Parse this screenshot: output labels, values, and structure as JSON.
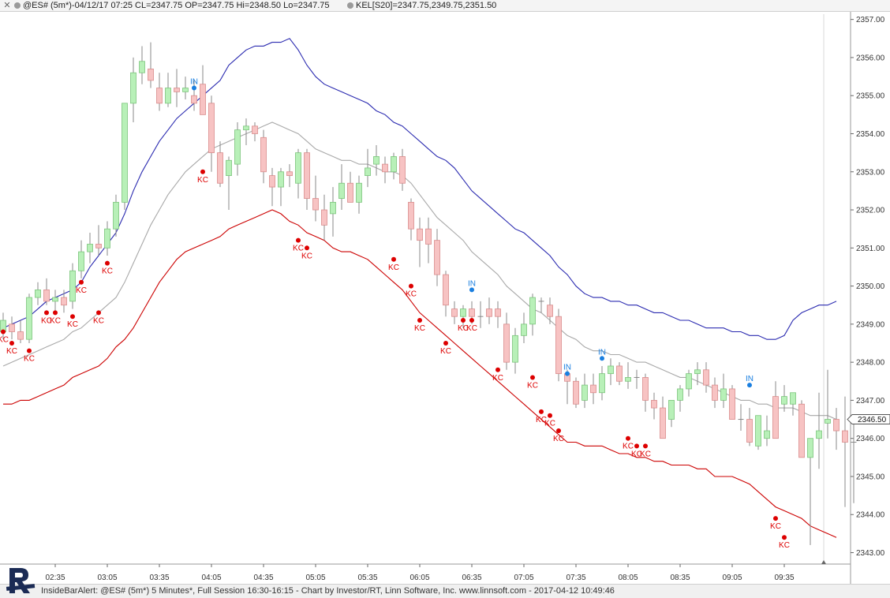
{
  "window": {
    "title": "@ES# (5m*)-04/12/17 07:25 CL=2347.75 OP=2347.75 Hi=2348.50 Lo=2347.75",
    "indicator": "KEL[S20]=2347.75,2349.75,2351.50",
    "close_label": "✕"
  },
  "footer": {
    "text": "InsideBarAlert: @ES# (5m*) 5 Minutes*, Full Session 16:30-16:15 - Chart by Investor/RT, Linn Software, Inc. www.linnsoft.com - 2017-04-12 10:49:46"
  },
  "colors": {
    "up_fill": "#b8f0b8",
    "up_edge": "#7cc57c",
    "down_fill": "#f7c3c3",
    "down_edge": "#d98c8c",
    "upper_band": "#2a2ab0",
    "middle_band": "#a8a8a8",
    "lower_band": "#cc0000",
    "kc_marker": "#dd0000",
    "in_marker": "#1a7fe0",
    "wick": "#888888"
  },
  "chart_data": {
    "type": "candlestick",
    "y_range": [
      2342.7,
      2357.2
    ],
    "y_ticks": [
      "2343.00",
      "2344.00",
      "2345.00",
      "2346.00",
      "2347.00",
      "2348.00",
      "2349.00",
      "2350.00",
      "2351.00",
      "2352.00",
      "2353.00",
      "2354.00",
      "2355.00",
      "2356.00",
      "2357.00"
    ],
    "x_labels": [
      {
        "bar": 6,
        "label": "02:35"
      },
      {
        "bar": 12,
        "label": "03:05"
      },
      {
        "bar": 18,
        "label": "03:35"
      },
      {
        "bar": 24,
        "label": "04:05"
      },
      {
        "bar": 30,
        "label": "04:35"
      },
      {
        "bar": 36,
        "label": "05:05"
      },
      {
        "bar": 42,
        "label": "05:35"
      },
      {
        "bar": 48,
        "label": "06:05"
      },
      {
        "bar": 54,
        "label": "06:35"
      },
      {
        "bar": 60,
        "label": "07:05"
      },
      {
        "bar": 66,
        "label": "07:35"
      },
      {
        "bar": 72,
        "label": "08:05"
      },
      {
        "bar": 78,
        "label": "08:35"
      },
      {
        "bar": 84,
        "label": "09:05"
      },
      {
        "bar": 90,
        "label": "09:35"
      }
    ],
    "last_price": "2346.50",
    "bars": [
      [
        2348.8,
        2349.3,
        2348.6,
        2349.1
      ],
      [
        2349.0,
        2349.2,
        2348.6,
        2348.8
      ],
      [
        2348.8,
        2349.1,
        2348.5,
        2348.6
      ],
      [
        2348.6,
        2349.8,
        2348.5,
        2349.7
      ],
      [
        2349.7,
        2350.1,
        2349.5,
        2349.9
      ],
      [
        2349.9,
        2350.2,
        2349.5,
        2349.6
      ],
      [
        2349.6,
        2349.9,
        2349.3,
        2349.7
      ],
      [
        2349.7,
        2349.9,
        2349.3,
        2349.5
      ],
      [
        2349.6,
        2350.6,
        2349.4,
        2350.4
      ],
      [
        2350.4,
        2351.2,
        2350.2,
        2350.9
      ],
      [
        2350.9,
        2351.4,
        2350.6,
        2351.1
      ],
      [
        2351.1,
        2351.6,
        2350.8,
        2351.0
      ],
      [
        2351.0,
        2351.7,
        2350.8,
        2351.5
      ],
      [
        2351.5,
        2352.4,
        2351.3,
        2352.2
      ],
      [
        2352.2,
        2354.0,
        2352.0,
        2354.8
      ],
      [
        2354.8,
        2356.0,
        2354.3,
        2355.6
      ],
      [
        2355.6,
        2356.3,
        2355.3,
        2355.9
      ],
      [
        2355.7,
        2356.4,
        2355.2,
        2355.4
      ],
      [
        2355.2,
        2355.6,
        2354.6,
        2354.8
      ],
      [
        2354.8,
        2355.6,
        2354.7,
        2355.2
      ],
      [
        2355.2,
        2355.7,
        2354.7,
        2355.1
      ],
      [
        2355.1,
        2355.5,
        2354.9,
        2355.2
      ],
      [
        2355.0,
        2355.4,
        2354.6,
        2354.8
      ],
      [
        2355.3,
        2355.8,
        2354.5,
        2354.5
      ],
      [
        2354.8,
        2355.0,
        2353.0,
        2353.5
      ],
      [
        2353.5,
        2353.8,
        2352.6,
        2352.7
      ],
      [
        2352.9,
        2353.4,
        2352.0,
        2353.3
      ],
      [
        2353.2,
        2354.3,
        2352.9,
        2354.1
      ],
      [
        2354.1,
        2354.4,
        2353.7,
        2354.2
      ],
      [
        2354.2,
        2354.3,
        2353.8,
        2354.0
      ],
      [
        2353.9,
        2354.1,
        2352.7,
        2353.0
      ],
      [
        2352.9,
        2353.1,
        2352.1,
        2352.6
      ],
      [
        2352.6,
        2353.1,
        2352.1,
        2353.0
      ],
      [
        2353.0,
        2353.2,
        2352.6,
        2352.9
      ],
      [
        2352.7,
        2353.6,
        2352.3,
        2353.5
      ],
      [
        2353.5,
        2353.6,
        2352.0,
        2352.3
      ],
      [
        2352.3,
        2352.9,
        2351.7,
        2352.0
      ],
      [
        2352.0,
        2352.4,
        2351.2,
        2351.6
      ],
      [
        2351.9,
        2352.6,
        2351.3,
        2352.2
      ],
      [
        2352.3,
        2353.2,
        2352.0,
        2352.7
      ],
      [
        2352.7,
        2353.0,
        2352.2,
        2352.2
      ],
      [
        2352.2,
        2352.9,
        2351.9,
        2352.7
      ],
      [
        2352.9,
        2353.6,
        2352.6,
        2353.1
      ],
      [
        2353.2,
        2353.7,
        2352.9,
        2353.4
      ],
      [
        2353.2,
        2353.4,
        2352.7,
        2353.0
      ],
      [
        2353.0,
        2353.5,
        2352.8,
        2353.4
      ],
      [
        2353.4,
        2353.6,
        2352.5,
        2352.7
      ],
      [
        2352.2,
        2352.3,
        2351.2,
        2351.5
      ],
      [
        2351.5,
        2351.8,
        2350.5,
        2351.2
      ],
      [
        2351.5,
        2351.8,
        2350.6,
        2351.1
      ],
      [
        2351.2,
        2351.5,
        2350.0,
        2350.3
      ],
      [
        2350.3,
        2350.4,
        2349.2,
        2349.5
      ],
      [
        2349.4,
        2349.6,
        2349.0,
        2349.2
      ],
      [
        2349.2,
        2349.5,
        2348.9,
        2349.4
      ],
      [
        2349.4,
        2349.6,
        2349.0,
        2349.2
      ],
      [
        2349.2,
        2349.6,
        2348.9,
        2349.2
      ],
      [
        2349.4,
        2349.7,
        2349.0,
        2349.2
      ],
      [
        2349.4,
        2349.6,
        2348.9,
        2349.2
      ],
      [
        2349.0,
        2349.3,
        2347.8,
        2348.0
      ],
      [
        2348.0,
        2348.9,
        2347.7,
        2348.7
      ],
      [
        2348.7,
        2349.3,
        2348.5,
        2349.0
      ],
      [
        2349.0,
        2349.8,
        2348.7,
        2349.7
      ],
      [
        2349.6,
        2349.7,
        2349.3,
        2349.6
      ],
      [
        2349.5,
        2349.7,
        2349.0,
        2349.2
      ],
      [
        2349.2,
        2349.4,
        2347.5,
        2347.7
      ],
      [
        2347.7,
        2347.8,
        2346.9,
        2347.5
      ],
      [
        2347.5,
        2347.6,
        2346.8,
        2346.9
      ],
      [
        2347.0,
        2347.7,
        2346.8,
        2347.4
      ],
      [
        2347.4,
        2347.7,
        2346.9,
        2347.2
      ],
      [
        2347.2,
        2347.9,
        2347.0,
        2347.7
      ],
      [
        2347.7,
        2348.1,
        2347.4,
        2347.9
      ],
      [
        2347.9,
        2348.0,
        2347.4,
        2347.5
      ],
      [
        2347.5,
        2348.0,
        2347.3,
        2347.6
      ],
      [
        2347.6,
        2347.8,
        2347.3,
        2347.6
      ],
      [
        2347.6,
        2347.7,
        2346.7,
        2347.0
      ],
      [
        2347.0,
        2347.2,
        2346.5,
        2346.8
      ],
      [
        2346.8,
        2347.1,
        2346.0,
        2346.0
      ],
      [
        2346.5,
        2347.0,
        2346.3,
        2347.0
      ],
      [
        2347.0,
        2347.4,
        2346.7,
        2347.3
      ],
      [
        2347.3,
        2347.8,
        2347.1,
        2347.7
      ],
      [
        2347.7,
        2348.0,
        2347.4,
        2347.8
      ],
      [
        2347.8,
        2348.0,
        2347.2,
        2347.4
      ],
      [
        2347.4,
        2347.6,
        2346.8,
        2347.0
      ],
      [
        2347.0,
        2347.7,
        2346.8,
        2347.3
      ],
      [
        2347.3,
        2347.4,
        2346.5,
        2346.5
      ],
      [
        2346.5,
        2346.9,
        2346.2,
        2346.5
      ],
      [
        2346.5,
        2346.8,
        2345.8,
        2345.9
      ],
      [
        2345.8,
        2346.6,
        2345.7,
        2346.6
      ],
      [
        2346.0,
        2346.6,
        2345.8,
        2346.2
      ],
      [
        2347.1,
        2347.5,
        2346.0,
        2346.0
      ],
      [
        2346.9,
        2347.4,
        2346.7,
        2347.1
      ],
      [
        2346.9,
        2347.2,
        2346.6,
        2347.2
      ],
      [
        2346.9,
        2347.0,
        2345.5,
        2345.5
      ],
      [
        2345.5,
        2345.6,
        2343.2,
        2346.0
      ],
      [
        2346.0,
        2347.2,
        2345.2,
        2346.2
      ],
      [
        2346.4,
        2347.8,
        2346.0,
        2346.5
      ],
      [
        2346.5,
        2346.8,
        2345.7,
        2346.2
      ],
      [
        2346.2,
        2347.1,
        2344.2,
        2345.9
      ],
      [
        2345.9,
        2346.5,
        2344.3,
        2345.9
      ]
    ],
    "upper_band": [
      2348.9,
      2349.0,
      2349.1,
      2349.2,
      2349.4,
      2349.6,
      2349.7,
      2349.8,
      2349.9,
      2350.1,
      2350.5,
      2350.8,
      2351.1,
      2351.4,
      2351.9,
      2352.5,
      2353.0,
      2353.4,
      2353.8,
      2354.1,
      2354.4,
      2354.6,
      2354.8,
      2355.0,
      2355.2,
      2355.4,
      2355.8,
      2356.0,
      2356.2,
      2356.3,
      2356.3,
      2356.4,
      2356.4,
      2356.5,
      2356.2,
      2355.8,
      2355.5,
      2355.3,
      2355.2,
      2355.1,
      2355.0,
      2354.9,
      2354.8,
      2354.6,
      2354.5,
      2354.3,
      2354.2,
      2354.0,
      2353.8,
      2353.6,
      2353.4,
      2353.3,
      2353.1,
      2352.8,
      2352.5,
      2352.3,
      2352.1,
      2351.9,
      2351.7,
      2351.5,
      2351.4,
      2351.2,
      2351.0,
      2350.8,
      2350.5,
      2350.3,
      2350.0,
      2349.8,
      2349.7,
      2349.7,
      2349.6,
      2349.6,
      2349.5,
      2349.5,
      2349.4,
      2349.3,
      2349.3,
      2349.2,
      2349.1,
      2349.1,
      2349.0,
      2348.9,
      2348.9,
      2348.9,
      2348.8,
      2348.8,
      2348.7,
      2348.7,
      2348.6,
      2348.6,
      2348.7,
      2349.1,
      2349.3,
      2349.4,
      2349.5,
      2349.5,
      2349.6
    ],
    "middle_band": [
      2347.9,
      2348.0,
      2348.1,
      2348.2,
      2348.3,
      2348.4,
      2348.5,
      2348.6,
      2348.8,
      2348.9,
      2349.1,
      2349.3,
      2349.5,
      2349.7,
      2350.1,
      2350.6,
      2351.1,
      2351.6,
      2352.0,
      2352.4,
      2352.7,
      2353.0,
      2353.2,
      2353.4,
      2353.6,
      2353.7,
      2353.8,
      2353.9,
      2354.0,
      2354.1,
      2354.2,
      2354.3,
      2354.2,
      2354.1,
      2354.0,
      2353.8,
      2353.6,
      2353.5,
      2353.4,
      2353.3,
      2353.3,
      2353.2,
      2353.2,
      2353.1,
      2353.0,
      2353.0,
      2352.9,
      2352.7,
      2352.4,
      2352.1,
      2351.8,
      2351.6,
      2351.4,
      2351.2,
      2350.9,
      2350.7,
      2350.5,
      2350.3,
      2350.0,
      2349.8,
      2349.6,
      2349.4,
      2349.3,
      2349.1,
      2348.9,
      2348.7,
      2348.6,
      2348.4,
      2348.3,
      2348.3,
      2348.2,
      2348.2,
      2348.1,
      2348.0,
      2348.0,
      2347.9,
      2347.8,
      2347.7,
      2347.6,
      2347.6,
      2347.5,
      2347.4,
      2347.3,
      2347.2,
      2347.1,
      2347.0,
      2347.0,
      2346.9,
      2346.9,
      2346.8,
      2346.8,
      2346.8,
      2346.7,
      2346.6,
      2346.6,
      2346.6,
      2346.5
    ],
    "lower_band": [
      2346.9,
      2346.9,
      2347.0,
      2347.0,
      2347.1,
      2347.2,
      2347.3,
      2347.4,
      2347.6,
      2347.7,
      2347.8,
      2347.9,
      2348.1,
      2348.4,
      2348.6,
      2348.9,
      2349.3,
      2349.7,
      2350.1,
      2350.4,
      2350.7,
      2350.9,
      2351.0,
      2351.1,
      2351.2,
      2351.3,
      2351.5,
      2351.6,
      2351.7,
      2351.8,
      2351.9,
      2352.0,
      2351.9,
      2351.7,
      2351.6,
      2351.4,
      2351.3,
      2351.2,
      2351.0,
      2350.9,
      2350.9,
      2350.8,
      2350.7,
      2350.5,
      2350.3,
      2350.1,
      2349.9,
      2349.6,
      2349.3,
      2349.1,
      2348.9,
      2348.7,
      2348.5,
      2348.3,
      2348.1,
      2347.9,
      2347.7,
      2347.5,
      2347.3,
      2347.1,
      2346.9,
      2346.7,
      2346.5,
      2346.3,
      2346.1,
      2345.9,
      2345.9,
      2345.8,
      2345.8,
      2345.8,
      2345.7,
      2345.6,
      2345.6,
      2345.5,
      2345.5,
      2345.4,
      2345.4,
      2345.3,
      2345.3,
      2345.3,
      2345.2,
      2345.2,
      2345.0,
      2345.0,
      2345.0,
      2344.9,
      2344.8,
      2344.6,
      2344.4,
      2344.2,
      2344.1,
      2344.0,
      2343.9,
      2343.7,
      2343.6,
      2343.5,
      2343.4
    ],
    "kc_markers": [
      [
        0,
        2348.8
      ],
      [
        1,
        2348.5
      ],
      [
        3,
        2348.3
      ],
      [
        5,
        2349.3
      ],
      [
        6,
        2349.3
      ],
      [
        8,
        2349.2
      ],
      [
        9,
        2350.1
      ],
      [
        11,
        2349.3
      ],
      [
        12,
        2350.6
      ],
      [
        23,
        2353.0
      ],
      [
        34,
        2351.2
      ],
      [
        35,
        2351.0
      ],
      [
        45,
        2350.7
      ],
      [
        47,
        2350.0
      ],
      [
        48,
        2349.1
      ],
      [
        51,
        2348.5
      ],
      [
        53,
        2349.1
      ],
      [
        54,
        2349.1
      ],
      [
        57,
        2347.8
      ],
      [
        61,
        2347.6
      ],
      [
        62,
        2346.7
      ],
      [
        63,
        2346.6
      ],
      [
        64,
        2346.2
      ],
      [
        72,
        2346.0
      ],
      [
        73,
        2345.8
      ],
      [
        74,
        2345.8
      ],
      [
        89,
        2343.9
      ],
      [
        90,
        2343.4
      ]
    ],
    "in_markers": [
      [
        22,
        2355.2
      ],
      [
        54,
        2349.9
      ],
      [
        65,
        2347.7
      ],
      [
        69,
        2348.1
      ],
      [
        86,
        2347.4
      ]
    ],
    "kc_label": "KC",
    "in_label": "IN"
  }
}
